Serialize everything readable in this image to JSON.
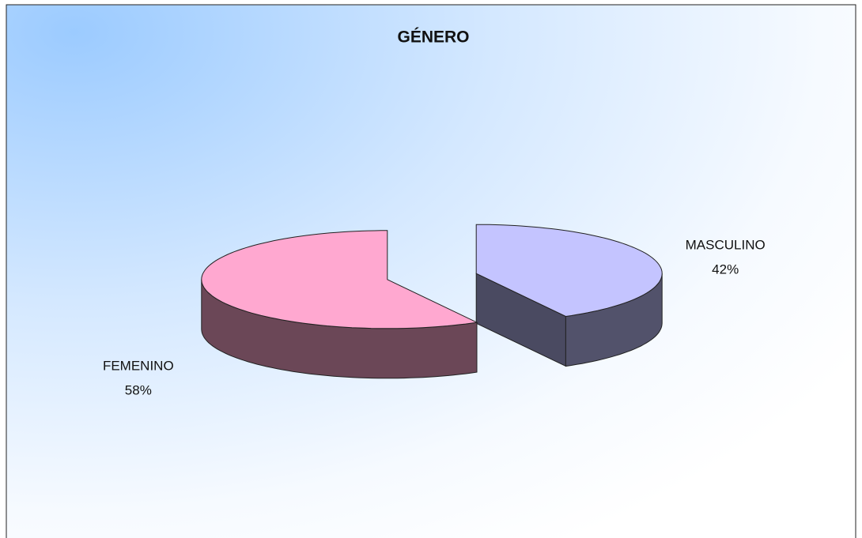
{
  "chart_data": {
    "type": "pie",
    "title": "GÉNERO",
    "categories": [
      "MASCULINO",
      "FEMENINO"
    ],
    "values": [
      42,
      58
    ],
    "value_labels": [
      "42%",
      "58%"
    ],
    "colors": [
      "#c4c4ff",
      "#ffa8d0"
    ]
  }
}
